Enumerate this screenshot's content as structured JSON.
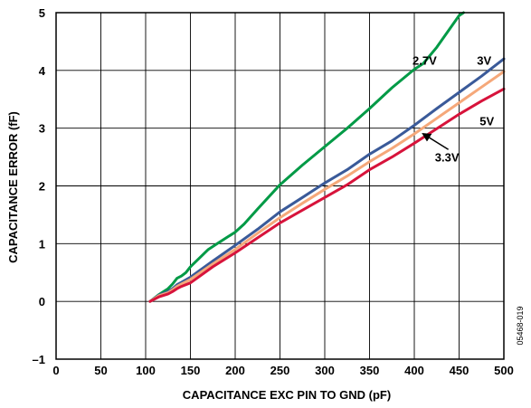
{
  "chart_data": {
    "type": "line",
    "xlabel": "CAPACITANCE EXC PIN TO GND (pF)",
    "ylabel": "CAPACITANCE ERROR (fF)",
    "xlim": [
      0,
      500
    ],
    "ylim": [
      -1,
      5
    ],
    "x_ticks": [
      "0",
      "50",
      "100",
      "150",
      "200",
      "250",
      "300",
      "350",
      "400",
      "450",
      "500"
    ],
    "y_ticks": [
      "–1",
      "0",
      "1",
      "2",
      "3",
      "4",
      "5"
    ],
    "grid": true,
    "figure_id": "05468-019",
    "series": [
      {
        "name": "2.7V",
        "color": "#009a46",
        "x": [
          105,
          115,
          125,
          130,
          135,
          140,
          145,
          150,
          160,
          170,
          180,
          190,
          200,
          210,
          225,
          250,
          275,
          300,
          325,
          350,
          375,
          400,
          410,
          425,
          450,
          455
        ],
        "y": [
          0,
          0.12,
          0.22,
          0.3,
          0.4,
          0.44,
          0.5,
          0.6,
          0.75,
          0.9,
          1.0,
          1.1,
          1.2,
          1.34,
          1.6,
          2.02,
          2.36,
          2.68,
          3.0,
          3.34,
          3.7,
          4.02,
          4.12,
          4.4,
          4.95,
          5.0
        ]
      },
      {
        "name": "3V",
        "color": "#3a5a99",
        "x": [
          105,
          115,
          125,
          130,
          135,
          140,
          150,
          175,
          200,
          225,
          250,
          275,
          300,
          325,
          350,
          375,
          400,
          425,
          450,
          475,
          500
        ],
        "y": [
          0,
          0.11,
          0.17,
          0.22,
          0.29,
          0.33,
          0.42,
          0.7,
          0.97,
          1.25,
          1.55,
          1.8,
          2.05,
          2.28,
          2.55,
          2.78,
          3.05,
          3.34,
          3.62,
          3.9,
          4.2
        ]
      },
      {
        "name": "3.3V",
        "color": "#f5a87a",
        "x": [
          105,
          115,
          125,
          130,
          135,
          140,
          150,
          175,
          200,
          225,
          250,
          275,
          300,
          325,
          350,
          375,
          400,
          425,
          450,
          475,
          500
        ],
        "y": [
          0,
          0.1,
          0.15,
          0.2,
          0.26,
          0.3,
          0.38,
          0.65,
          0.9,
          1.18,
          1.45,
          1.7,
          1.94,
          2.17,
          2.42,
          2.65,
          2.9,
          3.17,
          3.44,
          3.71,
          3.98
        ]
      },
      {
        "name": "5V",
        "color": "#d7133b",
        "x": [
          105,
          115,
          125,
          130,
          135,
          140,
          150,
          175,
          200,
          225,
          250,
          275,
          300,
          325,
          350,
          375,
          400,
          425,
          450,
          475,
          500
        ],
        "y": [
          0,
          0.08,
          0.13,
          0.17,
          0.22,
          0.26,
          0.32,
          0.6,
          0.84,
          1.1,
          1.36,
          1.58,
          1.8,
          2.02,
          2.28,
          2.5,
          2.74,
          2.99,
          3.24,
          3.47,
          3.68
        ]
      }
    ],
    "labels": [
      {
        "text": "2.7V",
        "x": 425,
        "y": 4.1,
        "anchor": "end"
      },
      {
        "text": "3V",
        "x": 470,
        "y": 4.1,
        "anchor": "start"
      },
      {
        "text": "5V",
        "x": 473,
        "y": 3.05,
        "anchor": "start"
      },
      {
        "text": "3.3V",
        "x": 450,
        "y": 2.42,
        "anchor": "end"
      }
    ],
    "annotation_arrow": {
      "from_x": 438,
      "from_y": 2.63,
      "to_x": 410,
      "to_y": 2.9
    }
  }
}
